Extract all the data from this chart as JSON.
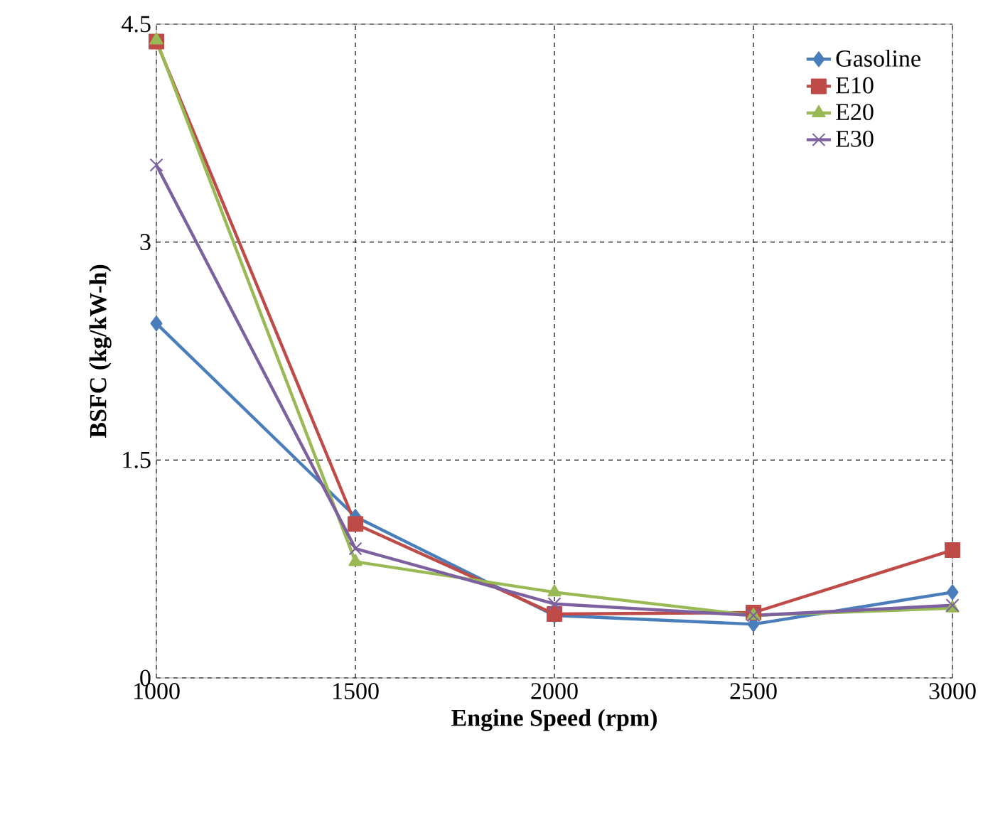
{
  "chart_data": {
    "type": "line",
    "xlabel": "Engine Speed (rpm)",
    "ylabel": "BSFC (kg/kW-h)",
    "x": [
      1000,
      1500,
      2000,
      2500,
      3000
    ],
    "series": [
      {
        "name": "Gasoline",
        "color": "#4a7ebb",
        "marker": "diamond",
        "values": [
          2.44,
          1.11,
          0.43,
          0.37,
          0.59
        ]
      },
      {
        "name": "E10",
        "color": "#be4b48",
        "marker": "square",
        "values": [
          4.38,
          1.06,
          0.44,
          0.45,
          0.88
        ]
      },
      {
        "name": "E20",
        "color": "#98b954",
        "marker": "triangle",
        "values": [
          4.39,
          0.8,
          0.59,
          0.43,
          0.48
        ]
      },
      {
        "name": "E30",
        "color": "#7d60a0",
        "marker": "cross",
        "values": [
          3.53,
          0.89,
          0.51,
          0.43,
          0.5
        ]
      }
    ],
    "xlim": [
      1000,
      3000
    ],
    "xticks": [
      1000,
      1500,
      2000,
      2500,
      3000
    ],
    "ylim": [
      0,
      4.5
    ],
    "yticks": [
      0,
      1.5,
      3,
      4.5
    ],
    "grid": true,
    "legend": "top right",
    "line_style": "solid"
  }
}
